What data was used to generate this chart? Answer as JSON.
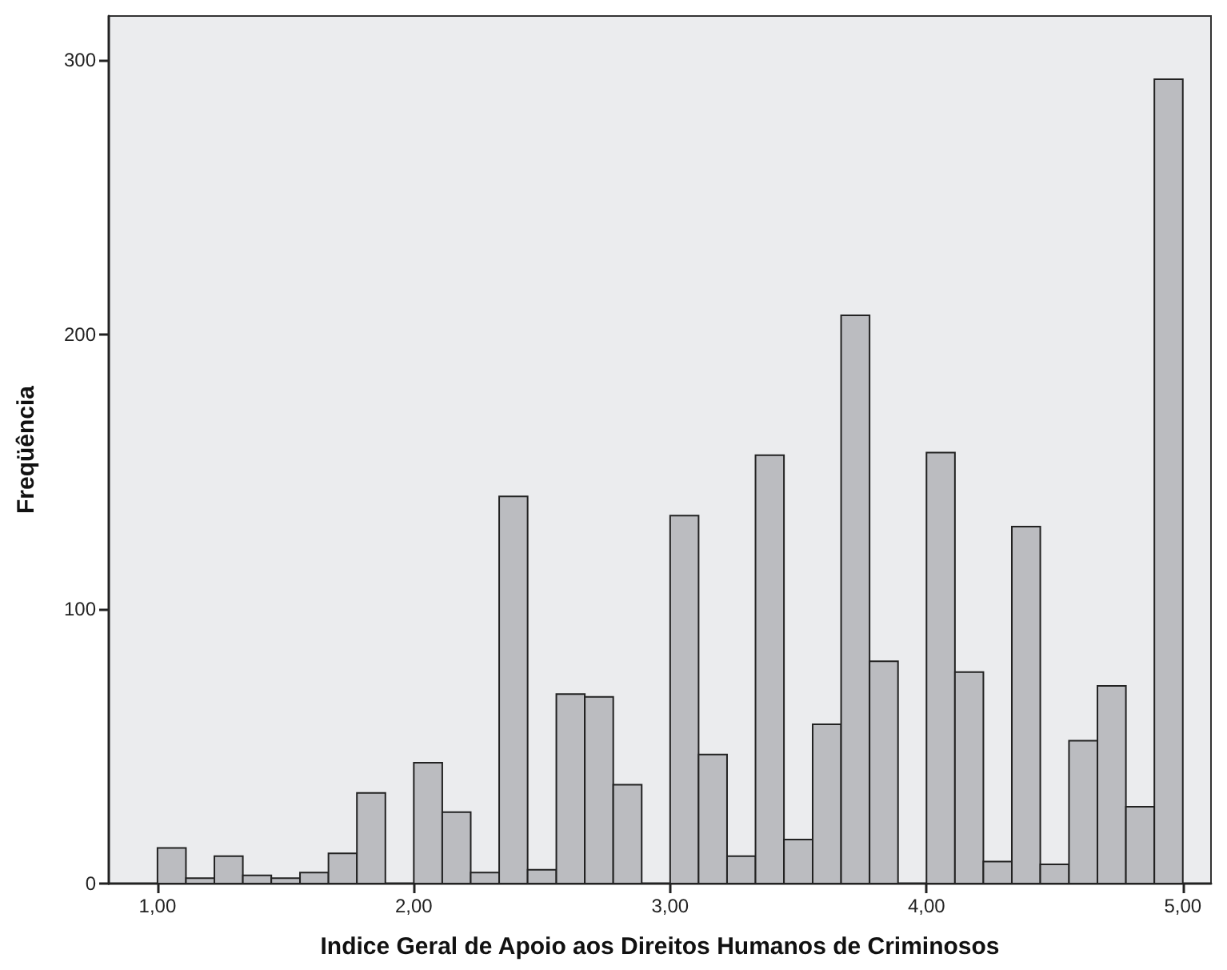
{
  "chart_data": {
    "type": "histogram",
    "xlabel": "Indice Geral de Apoio aos Direitos Humanos de Criminosos",
    "ylabel": "Freqüência",
    "bins": [
      1,
      1.111,
      1.222,
      1.333,
      1.444,
      1.556,
      1.667,
      1.778,
      1.889,
      2,
      2.111,
      2.222,
      2.333,
      2.444,
      2.556,
      2.667,
      2.778,
      2.889,
      3,
      3.111,
      3.222,
      3.333,
      3.444,
      3.556,
      3.667,
      3.778,
      3.889,
      4,
      4.111,
      4.222,
      4.333,
      4.444,
      4.556,
      4.667,
      4.778,
      4.889,
      5
    ],
    "values": [
      13,
      2,
      10,
      3,
      2,
      4,
      11,
      33,
      0,
      44,
      26,
      4,
      141,
      5,
      69,
      68,
      36,
      0,
      134,
      47,
      10,
      156,
      16,
      58,
      207,
      81,
      0,
      157,
      77,
      8,
      130,
      7,
      52,
      72,
      28,
      293
    ],
    "color": "#bbbcc0",
    "xlim": [
      0.81,
      5.11
    ],
    "ylim": [
      0,
      316
    ],
    "xticks": [
      {
        "value": 1,
        "label": "1,00"
      },
      {
        "value": 2,
        "label": "2,00"
      },
      {
        "value": 3,
        "label": "3,00"
      },
      {
        "value": 4,
        "label": "4,00"
      },
      {
        "value": 5,
        "label": "5,00"
      }
    ],
    "yticks": [
      0,
      100,
      200,
      300
    ]
  }
}
